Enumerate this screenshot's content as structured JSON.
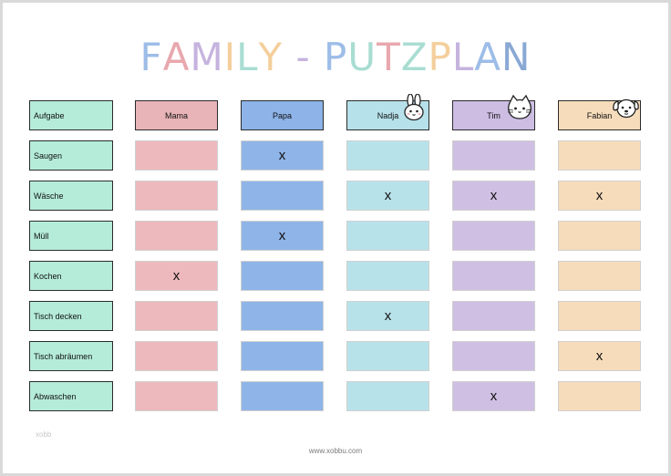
{
  "title": {
    "letters": [
      {
        "ch": "F",
        "color": "#9dbde8"
      },
      {
        "ch": "A",
        "color": "#e8a8ae"
      },
      {
        "ch": "M",
        "color": "#c6b3de"
      },
      {
        "ch": "I",
        "color": "#f4cf9c"
      },
      {
        "ch": "L",
        "color": "#a9ddd2"
      },
      {
        "ch": "Y",
        "color": "#f4cf9c"
      },
      {
        "ch": " ",
        "color": "#ffffff"
      },
      {
        "ch": "-",
        "color": "#c6b3de"
      },
      {
        "ch": " ",
        "color": "#ffffff"
      },
      {
        "ch": "P",
        "color": "#9dbde8"
      },
      {
        "ch": "U",
        "color": "#a9ddd2"
      },
      {
        "ch": "T",
        "color": "#e8a8ae"
      },
      {
        "ch": "Z",
        "color": "#a9ddd2"
      },
      {
        "ch": "P",
        "color": "#f4cf9c"
      },
      {
        "ch": "L",
        "color": "#c6b3de"
      },
      {
        "ch": "A",
        "color": "#9dbde8"
      },
      {
        "ch": "N",
        "color": "#8aa8d4"
      }
    ]
  },
  "header_label": "Aufgabe",
  "members": [
    {
      "name": "Mama",
      "head_color": "#e8b4b7",
      "body_color": "#eeb9bc",
      "icon": ""
    },
    {
      "name": "Papa",
      "head_color": "#8db3e8",
      "body_color": "#8fb5e8",
      "icon": ""
    },
    {
      "name": "Nadja",
      "head_color": "#b6e1ea",
      "body_color": "#b8e2ea",
      "icon": "bunny-icon"
    },
    {
      "name": "Tim",
      "head_color": "#cdbde3",
      "body_color": "#cfc0e3",
      "icon": "cat-icon"
    },
    {
      "name": "Fabian",
      "head_color": "#f6dcbb",
      "body_color": "#f6dcbb",
      "icon": "dog-icon"
    }
  ],
  "tasks": [
    {
      "name": "Saugen",
      "marks": [
        "",
        "x",
        "",
        "",
        ""
      ]
    },
    {
      "name": "Wäsche",
      "marks": [
        "",
        "",
        "x",
        "x",
        "x"
      ]
    },
    {
      "name": "Müll",
      "marks": [
        "",
        "x",
        "",
        "",
        ""
      ]
    },
    {
      "name": "Kochen",
      "marks": [
        "x",
        "",
        "",
        "",
        ""
      ]
    },
    {
      "name": "Tisch decken",
      "marks": [
        "",
        "",
        "x",
        "",
        ""
      ]
    },
    {
      "name": "Tisch abräumen",
      "marks": [
        "",
        "",
        "",
        "",
        "x"
      ]
    },
    {
      "name": "Abwaschen",
      "marks": [
        "",
        "",
        "",
        "x",
        ""
      ]
    }
  ],
  "footer": "www.xobbu.com",
  "faint_mark": "xobb"
}
